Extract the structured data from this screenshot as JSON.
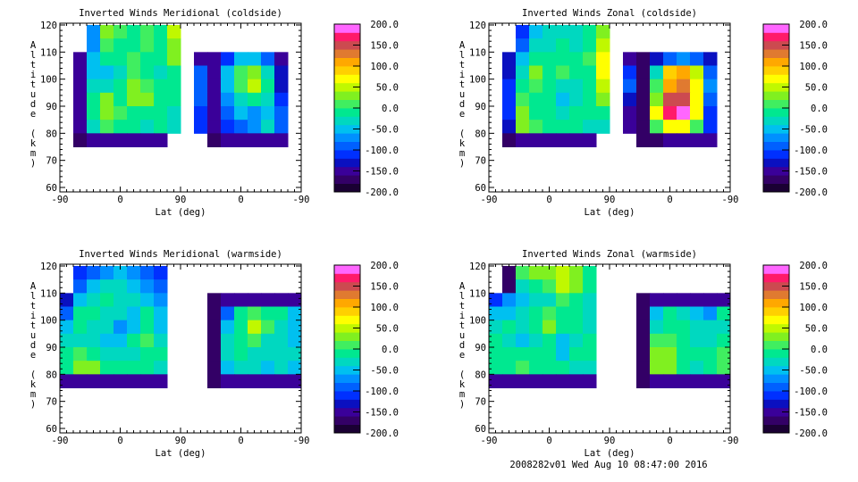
{
  "chart_data": [
    {
      "type": "heatmap",
      "title": "Inverted Winds Meridional (coldside)",
      "xlabel": "Lat (deg)",
      "ylabel": "Altitude (km)",
      "xticks": [
        "-90",
        "0",
        "90",
        "0",
        "-90"
      ],
      "yticks": [
        "60",
        "70",
        "80",
        "90",
        "100",
        "110",
        "120"
      ],
      "ylim": [
        60,
        120
      ],
      "x_path_bins_deg": 20,
      "alt_bins_km_top_to_bottom": [
        120,
        115,
        110,
        105,
        100,
        95,
        90,
        85,
        80
      ],
      "values": [
        [
          null,
          null,
          -80,
          20,
          0,
          -10,
          0,
          -10,
          40,
          null,
          null,
          null,
          null,
          null,
          null,
          null,
          null,
          null
        ],
        [
          null,
          null,
          -80,
          10,
          -10,
          -10,
          0,
          -20,
          30,
          null,
          null,
          null,
          null,
          null,
          null,
          null,
          null,
          null
        ],
        [
          null,
          -150,
          -60,
          -20,
          -20,
          0,
          -10,
          -10,
          20,
          null,
          -150,
          -150,
          -120,
          -60,
          -60,
          -100,
          -150,
          null
        ],
        [
          null,
          -150,
          -50,
          -60,
          -30,
          10,
          -10,
          -30,
          -10,
          null,
          -100,
          -150,
          -60,
          0,
          20,
          -40,
          -140,
          null
        ],
        [
          null,
          -150,
          -40,
          -40,
          -10,
          30,
          10,
          -10,
          -10,
          null,
          -100,
          -150,
          -50,
          10,
          40,
          -20,
          -130,
          null
        ],
        [
          null,
          -150,
          -20,
          20,
          -10,
          20,
          20,
          -10,
          -20,
          null,
          -100,
          -150,
          -70,
          -30,
          -20,
          -40,
          -120,
          null
        ],
        [
          null,
          -150,
          -10,
          30,
          10,
          -10,
          -20,
          -20,
          -30,
          null,
          -110,
          -150,
          -100,
          -60,
          -70,
          -50,
          -100,
          null
        ],
        [
          null,
          -150,
          -30,
          0,
          -20,
          -20,
          -30,
          -20,
          -40,
          null,
          -120,
          -150,
          -110,
          -90,
          -80,
          -40,
          -100,
          null
        ],
        [
          null,
          -170,
          -150,
          -150,
          -150,
          -150,
          -150,
          -150,
          null,
          null,
          null,
          -170,
          -160,
          -160,
          -160,
          -160,
          -160,
          null
        ]
      ]
    },
    {
      "type": "heatmap",
      "title": "Inverted Winds Zonal (coldside)",
      "xlabel": "Lat (deg)",
      "ylabel": "Altitude (km)",
      "xticks": [
        "-90",
        "0",
        "90",
        "0",
        "-90"
      ],
      "yticks": [
        "60",
        "70",
        "80",
        "90",
        "100",
        "110",
        "120"
      ],
      "ylim": [
        60,
        120
      ],
      "x_path_bins_deg": 20,
      "alt_bins_km_top_to_bottom": [
        120,
        115,
        110,
        105,
        100,
        95,
        90,
        85,
        80
      ],
      "values": [
        [
          null,
          null,
          -120,
          -50,
          -40,
          -40,
          -40,
          -20,
          20,
          null,
          null,
          null,
          null,
          null,
          null,
          null,
          null,
          null
        ],
        [
          null,
          null,
          -100,
          -40,
          -30,
          -20,
          -30,
          -10,
          40,
          null,
          null,
          null,
          null,
          null,
          null,
          null,
          null,
          null
        ],
        [
          null,
          -130,
          -60,
          -10,
          -20,
          -10,
          -20,
          0,
          60,
          null,
          -150,
          -180,
          -140,
          -100,
          -80,
          -100,
          -140,
          null
        ],
        [
          null,
          -130,
          -30,
          30,
          -20,
          0,
          -20,
          -10,
          60,
          null,
          -120,
          -180,
          -40,
          80,
          100,
          40,
          -100,
          null
        ],
        [
          null,
          -120,
          -10,
          10,
          -20,
          -40,
          -30,
          -10,
          40,
          null,
          -100,
          -180,
          0,
          110,
          120,
          60,
          -80,
          null
        ],
        [
          null,
          -120,
          10,
          -10,
          -20,
          -60,
          -30,
          -20,
          20,
          null,
          -130,
          -180,
          30,
          150,
          150,
          70,
          -90,
          null
        ],
        [
          null,
          -120,
          30,
          -10,
          -20,
          -30,
          -20,
          -20,
          -10,
          null,
          -150,
          -180,
          60,
          170,
          180,
          60,
          -110,
          null
        ],
        [
          null,
          -130,
          30,
          10,
          -20,
          -20,
          -20,
          -30,
          -30,
          null,
          -160,
          -180,
          0,
          60,
          70,
          0,
          -120,
          null
        ],
        [
          null,
          -170,
          -150,
          -150,
          -150,
          -150,
          -150,
          -150,
          null,
          null,
          null,
          -180,
          -170,
          -160,
          -160,
          -160,
          -160,
          null
        ]
      ]
    },
    {
      "type": "heatmap",
      "title": "Inverted Winds Meridional (warmside)",
      "xlabel": "Lat (deg)",
      "ylabel": "Altitude (km)",
      "xticks": [
        "-90",
        "0",
        "90",
        "0",
        "-90"
      ],
      "yticks": [
        "60",
        "70",
        "80",
        "90",
        "100",
        "110",
        "120"
      ],
      "ylim": [
        60,
        120
      ],
      "x_path_bins_deg": 20,
      "alt_bins_km_top_to_bottom": [
        120,
        115,
        110,
        105,
        100,
        95,
        90,
        85,
        80
      ],
      "values": [
        [
          null,
          -120,
          -90,
          -70,
          -60,
          -80,
          -100,
          -120,
          null,
          null,
          null,
          null,
          null,
          null,
          null,
          null,
          null,
          null
        ],
        [
          null,
          -100,
          -60,
          -40,
          -40,
          -60,
          -80,
          -100,
          null,
          null,
          null,
          null,
          null,
          null,
          null,
          null,
          null,
          null
        ],
        [
          -140,
          -60,
          -40,
          -20,
          -40,
          -40,
          -60,
          -80,
          null,
          null,
          null,
          -170,
          -160,
          -150,
          -150,
          -150,
          -150,
          -150
        ],
        [
          -100,
          -20,
          -10,
          -40,
          -30,
          -60,
          -20,
          -50,
          null,
          null,
          null,
          -180,
          -100,
          -20,
          10,
          -10,
          -10,
          -60
        ],
        [
          -60,
          -20,
          -30,
          -40,
          -80,
          -50,
          -10,
          -60,
          null,
          null,
          null,
          -180,
          -60,
          -10,
          40,
          0,
          -30,
          -50
        ],
        [
          -40,
          -40,
          -40,
          -50,
          -60,
          -20,
          0,
          -40,
          null,
          null,
          null,
          -180,
          -40,
          -20,
          10,
          -30,
          -40,
          -50
        ],
        [
          -20,
          0,
          -20,
          -30,
          -30,
          -30,
          -20,
          -20,
          null,
          null,
          null,
          -180,
          -40,
          -20,
          -40,
          -40,
          -40,
          -40
        ],
        [
          -10,
          30,
          20,
          -10,
          -20,
          -20,
          -20,
          -30,
          null,
          null,
          null,
          -170,
          -50,
          -30,
          -40,
          -50,
          -40,
          -60
        ],
        [
          -150,
          -150,
          -150,
          -150,
          -150,
          -150,
          -150,
          -150,
          null,
          null,
          null,
          -170,
          -150,
          -150,
          -150,
          -150,
          -150,
          -150
        ]
      ]
    },
    {
      "type": "heatmap",
      "title": "Inverted Winds Zonal (warmside)",
      "xlabel": "Lat (deg)",
      "ylabel": "Altitude (km)",
      "xticks": [
        "-90",
        "0",
        "90",
        "0",
        "-90"
      ],
      "yticks": [
        "60",
        "70",
        "80",
        "90",
        "100",
        "110",
        "120"
      ],
      "ylim": [
        60,
        120
      ],
      "x_path_bins_deg": 20,
      "alt_bins_km_top_to_bottom": [
        120,
        115,
        110,
        105,
        100,
        95,
        90,
        85,
        80
      ],
      "values": [
        [
          null,
          -180,
          10,
          30,
          30,
          40,
          20,
          -20,
          null,
          null,
          null,
          null,
          null,
          null,
          null,
          null,
          null,
          null
        ],
        [
          null,
          -180,
          -30,
          -20,
          10,
          40,
          30,
          -10,
          null,
          null,
          null,
          null,
          null,
          null,
          null,
          null,
          null,
          null
        ],
        [
          -120,
          -80,
          -60,
          -30,
          -40,
          0,
          -10,
          -30,
          null,
          null,
          null,
          -170,
          -160,
          -150,
          -150,
          -150,
          -150,
          -150
        ],
        [
          -60,
          -60,
          -30,
          -10,
          10,
          -20,
          -20,
          -30,
          null,
          null,
          null,
          -180,
          -60,
          -20,
          -30,
          -50,
          -80,
          -20
        ],
        [
          -30,
          -20,
          -40,
          -20,
          20,
          -10,
          -20,
          -30,
          null,
          null,
          null,
          -180,
          -30,
          -10,
          -20,
          -40,
          -40,
          -30
        ],
        [
          -20,
          -30,
          -50,
          -30,
          -20,
          -60,
          -30,
          -20,
          null,
          null,
          null,
          -180,
          10,
          0,
          -10,
          -30,
          -40,
          -20
        ],
        [
          -10,
          -10,
          -20,
          -10,
          -20,
          -50,
          -20,
          -20,
          null,
          null,
          null,
          -170,
          30,
          20,
          -10,
          -20,
          -20,
          0
        ],
        [
          -20,
          -20,
          0,
          -20,
          -20,
          -20,
          -30,
          -30,
          null,
          null,
          null,
          -170,
          20,
          30,
          -20,
          -30,
          -20,
          10
        ],
        [
          -150,
          -150,
          -150,
          -150,
          -150,
          -150,
          -150,
          -150,
          null,
          null,
          null,
          -170,
          -150,
          -150,
          -150,
          -150,
          -150,
          -150
        ]
      ]
    }
  ],
  "colorbar": {
    "range": [
      -200,
      200
    ],
    "labels": [
      "200.0",
      "150.0",
      "100.0",
      "50.0",
      "0.0",
      "-50.0",
      "-100.0",
      "-150.0",
      "-200.0"
    ],
    "colors_bottom_to_top": [
      "#1a0033",
      "#330066",
      "#3a0099",
      "#0a10c0",
      "#0030ff",
      "#0060ff",
      "#0090ff",
      "#00c0f0",
      "#00d8c0",
      "#00e890",
      "#40ee60",
      "#80f020",
      "#c0f800",
      "#ffff00",
      "#ffd000",
      "#ffa800",
      "#e07a30",
      "#cc4a50",
      "#ff1a6a",
      "#ff66ff"
    ]
  },
  "footer": "2008282v01 Wed Aug 10 08:47:00 2016"
}
